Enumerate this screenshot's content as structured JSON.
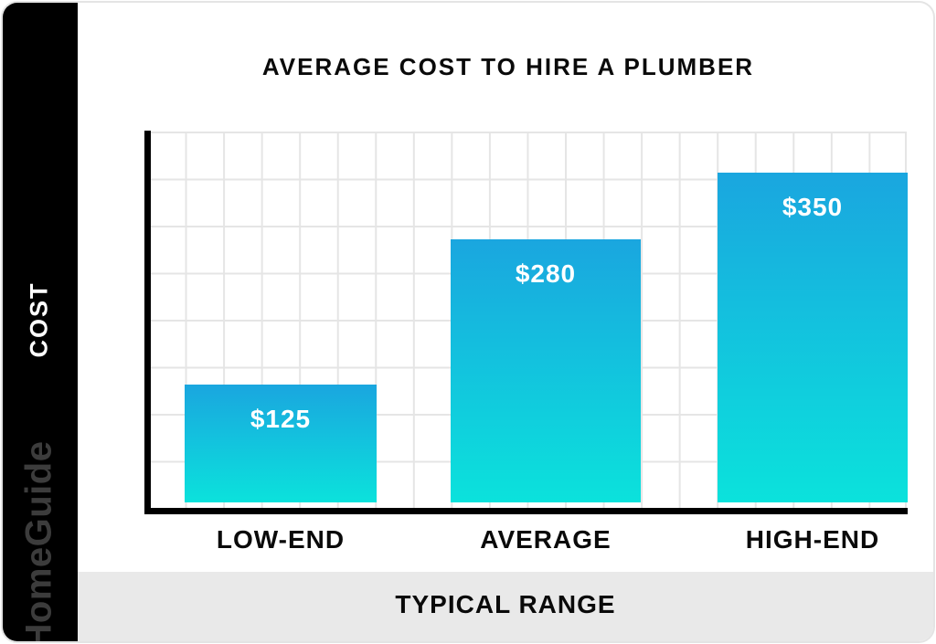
{
  "brand": "HomeGuide",
  "colors": {
    "bar_top": "#1AA6DF",
    "bar_bottom": "#0BE2DC",
    "grid": "#E5E5E5",
    "footer_bg": "#E9E9E9",
    "sidebar_bg": "#000000",
    "brand_text": "#3C3C3C",
    "axis": "#000000",
    "card_border": "#E4E4E4"
  },
  "chart_data": {
    "type": "bar",
    "title": "AVERAGE COST TO HIRE A PLUMBER",
    "categories": [
      "LOW-END",
      "AVERAGE",
      "HIGH-END"
    ],
    "values": [
      125,
      280,
      350
    ],
    "value_labels": [
      "$125",
      "$280",
      "$350"
    ],
    "xlabel": "TYPICAL RANGE",
    "ylabel": "COST",
    "ylim": [
      0,
      400
    ],
    "grid": true,
    "legend": false,
    "bar_color_gradient": [
      "#1AA6DF",
      "#0BE2DC"
    ],
    "pixels_per_dollar": 1.03
  }
}
